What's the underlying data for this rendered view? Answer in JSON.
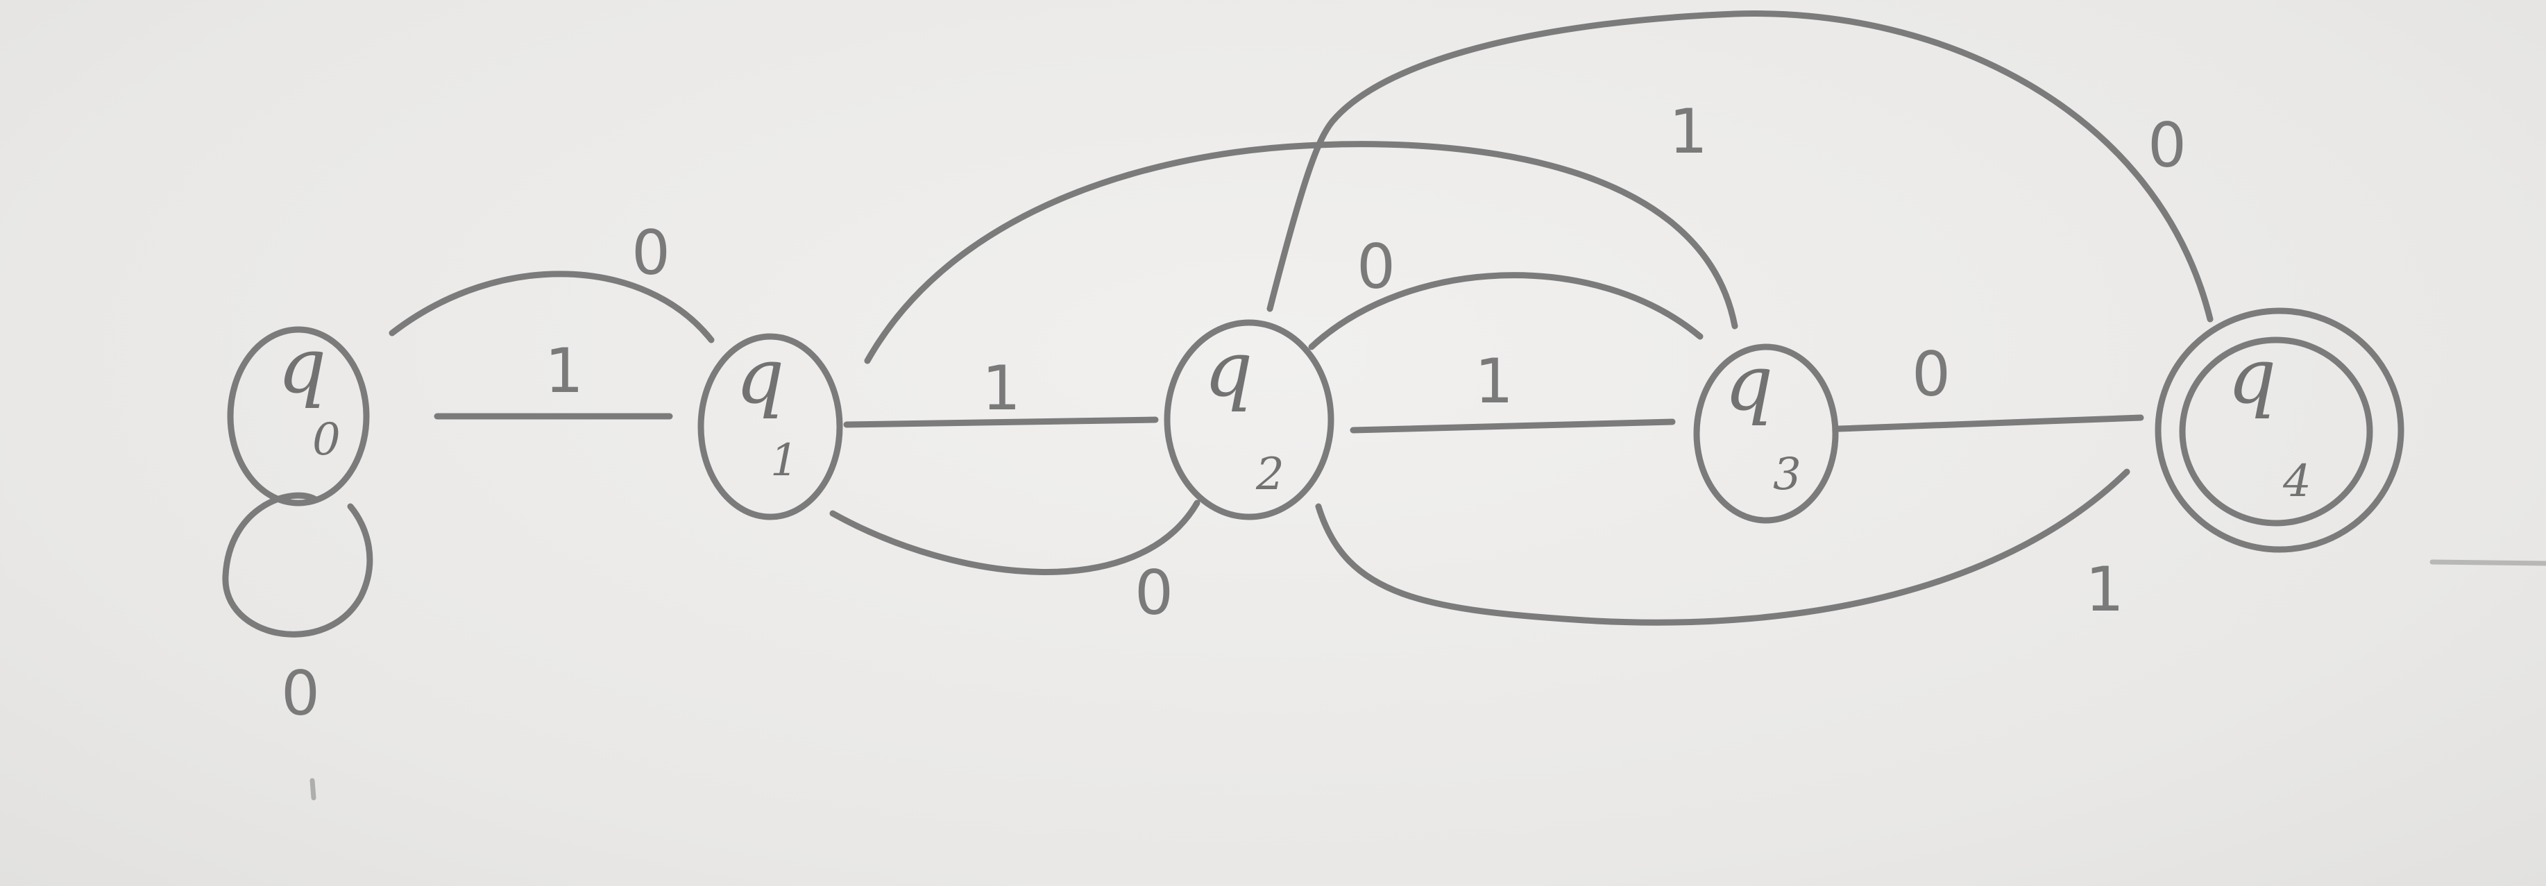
{
  "diagram": {
    "type": "finite-automaton",
    "states": [
      {
        "id": "q0",
        "label": "q",
        "sub": "0",
        "accepting": false
      },
      {
        "id": "q1",
        "label": "q",
        "sub": "1",
        "accepting": false
      },
      {
        "id": "q2",
        "label": "q",
        "sub": "2",
        "accepting": false
      },
      {
        "id": "q3",
        "label": "q",
        "sub": "3",
        "accepting": false
      },
      {
        "id": "q4",
        "label": "q",
        "sub": "4",
        "accepting": true
      }
    ],
    "transitions": [
      {
        "from": "q0",
        "to": "q0",
        "symbol": "0"
      },
      {
        "from": "q0",
        "to": "q1",
        "symbol": "1"
      },
      {
        "from": "q1",
        "to": "q0",
        "symbol": "0"
      },
      {
        "from": "q1",
        "to": "q2",
        "symbol": "1"
      },
      {
        "from": "q2",
        "to": "q1",
        "symbol": "0"
      },
      {
        "from": "q2",
        "to": "q3",
        "symbol": "1"
      },
      {
        "from": "q2",
        "to": "q3",
        "symbol": "0"
      },
      {
        "from": "q3",
        "to": "q4",
        "symbol": "0"
      },
      {
        "from": "q3",
        "to": "q1",
        "symbol": "1"
      },
      {
        "from": "q4",
        "to": "q2",
        "symbol": "1"
      },
      {
        "from": "q4",
        "to": "q2",
        "symbol": "0"
      }
    ]
  }
}
